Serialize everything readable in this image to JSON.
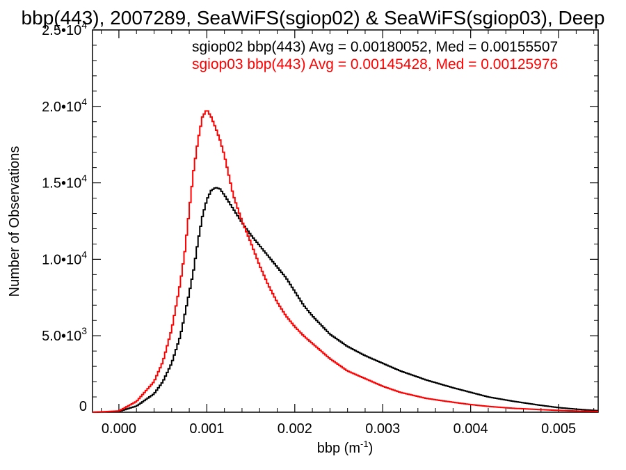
{
  "chart_data": {
    "type": "line",
    "title": "bbp(443), 2007289, SeaWiFS(sgiop02) & SeaWiFS(sgiop03), Deep",
    "xlabel": "bbp (m",
    "xlabel_sup": "-1",
    "xlabel_end": ")",
    "ylabel": "Number of Observations",
    "xlim": [
      -0.0003,
      0.00545
    ],
    "ylim": [
      0,
      25000
    ],
    "x_ticks": [
      {
        "value": 0.0,
        "label": "0.000"
      },
      {
        "value": 0.001,
        "label": "0.001"
      },
      {
        "value": 0.002,
        "label": "0.002"
      },
      {
        "value": 0.003,
        "label": "0.003"
      },
      {
        "value": 0.004,
        "label": "0.004"
      },
      {
        "value": 0.005,
        "label": "0.005"
      }
    ],
    "y_ticks": [
      {
        "value": 0,
        "mant": "0",
        "exp": ""
      },
      {
        "value": 5000,
        "mant": "5.0•10",
        "exp": "3"
      },
      {
        "value": 10000,
        "mant": "1.0•10",
        "exp": "4"
      },
      {
        "value": 15000,
        "mant": "1.5•10",
        "exp": "4"
      },
      {
        "value": 20000,
        "mant": "2.0•10",
        "exp": "4"
      },
      {
        "value": 25000,
        "mant": "2.5•10",
        "exp": "4"
      }
    ],
    "grid": false,
    "legend_position": "top-right",
    "series": [
      {
        "name": "sgiop02 bbp(443) Avg = 0.00180052, Med = 0.00155507",
        "color": "#000000",
        "x": [
          -0.0003,
          0.0,
          0.0002,
          0.0004,
          0.0005,
          0.0006,
          0.0007,
          0.0008,
          0.00085,
          0.0009,
          0.00095,
          0.001,
          0.00105,
          0.0011,
          0.00115,
          0.0012,
          0.0013,
          0.0014,
          0.0015,
          0.0016,
          0.0017,
          0.0018,
          0.0019,
          0.002,
          0.0021,
          0.0022,
          0.0023,
          0.0024,
          0.0025,
          0.0026,
          0.0028,
          0.003,
          0.0032,
          0.0035,
          0.0038,
          0.004,
          0.0042,
          0.0045,
          0.0048,
          0.005,
          0.0052,
          0.00545
        ],
        "y": [
          0,
          50,
          400,
          1200,
          2000,
          3200,
          5000,
          7800,
          9300,
          11200,
          12800,
          13900,
          14500,
          14700,
          14600,
          14200,
          13300,
          12400,
          11600,
          10900,
          10200,
          9500,
          8800,
          7900,
          7000,
          6300,
          5700,
          5100,
          4700,
          4300,
          3700,
          3200,
          2700,
          2100,
          1600,
          1300,
          1000,
          700,
          450,
          300,
          200,
          100
        ]
      },
      {
        "name": "sgiop03 bbp(443) Avg = 0.00145428, Med = 0.00125976",
        "color": "#ff0000",
        "x": [
          -0.0003,
          0.0,
          0.0002,
          0.0004,
          0.0005,
          0.0006,
          0.0007,
          0.00075,
          0.0008,
          0.00085,
          0.0009,
          0.00095,
          0.001,
          0.00105,
          0.0011,
          0.00115,
          0.0012,
          0.0013,
          0.0014,
          0.0015,
          0.0016,
          0.0017,
          0.0018,
          0.0019,
          0.002,
          0.0021,
          0.0022,
          0.0023,
          0.0024,
          0.0025,
          0.0026,
          0.0028,
          0.003,
          0.0032,
          0.0035,
          0.0038,
          0.004,
          0.0042,
          0.0045,
          0.0048,
          0.005,
          0.0052,
          0.00545
        ],
        "y": [
          0,
          80,
          700,
          2000,
          3300,
          5400,
          8500,
          10500,
          13200,
          15800,
          17800,
          19300,
          19800,
          19300,
          18600,
          17800,
          16800,
          14200,
          12500,
          11100,
          9600,
          8300,
          7200,
          6300,
          5600,
          5000,
          4500,
          4000,
          3500,
          3100,
          2700,
          2200,
          1700,
          1300,
          900,
          650,
          500,
          380,
          250,
          170,
          120,
          80,
          50
        ]
      }
    ]
  }
}
